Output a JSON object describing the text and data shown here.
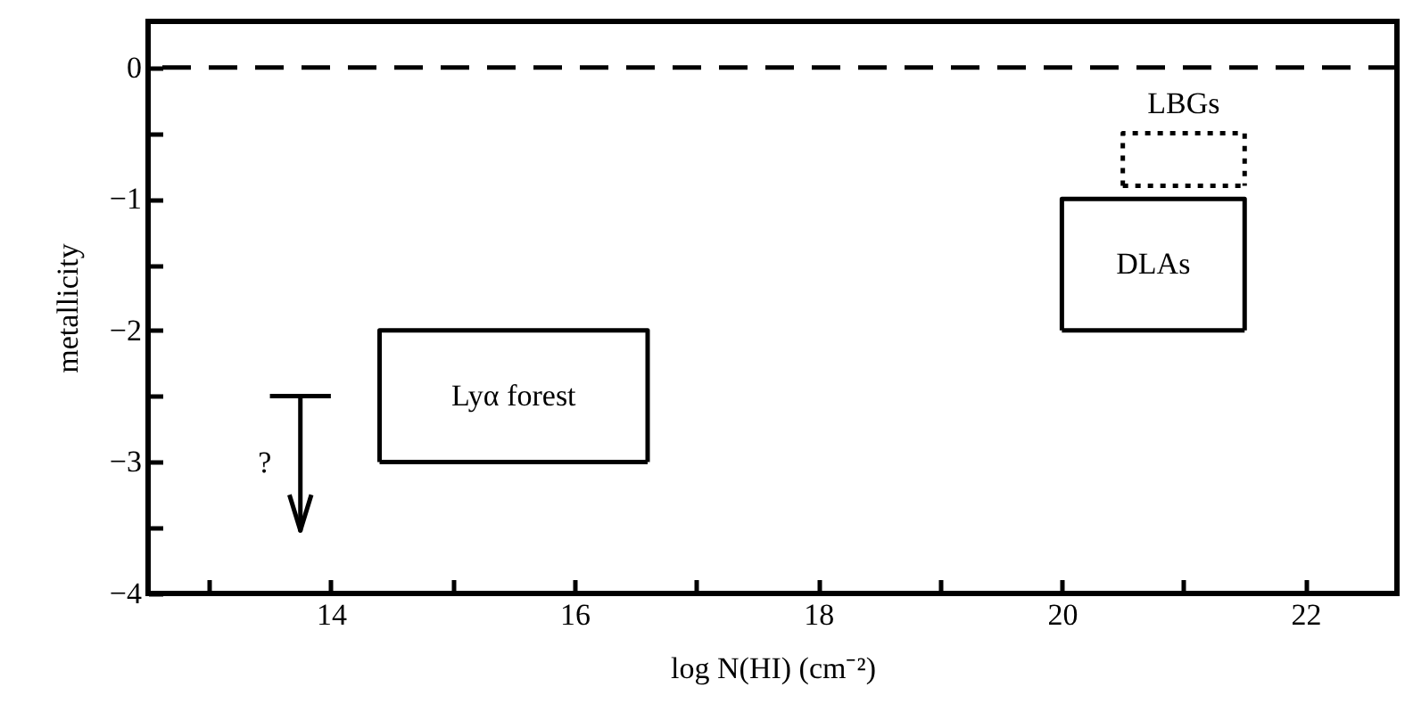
{
  "chart_data": {
    "type": "line",
    "xlabel": "log N(HI) (cm⁻²)",
    "ylabel": "metallicity",
    "xlim": [
      12.5,
      22.75
    ],
    "ylim": [
      -4,
      0.35
    ],
    "xticks": [
      {
        "value": 13,
        "label": null
      },
      14,
      {
        "value": 15,
        "label": null
      },
      16,
      {
        "value": 17,
        "label": null
      },
      18,
      {
        "value": 19,
        "label": null
      },
      20,
      {
        "value": 21,
        "label": null
      },
      22
    ],
    "yticks": [
      -4,
      {
        "value": -3.5,
        "label": null
      },
      -3,
      {
        "value": -2.5,
        "label": null
      },
      -2,
      {
        "value": -1.5,
        "label": null
      },
      -1,
      {
        "value": -0.5,
        "label": null
      },
      0
    ],
    "series": [
      {
        "name": "Lyα  forest",
        "color": "#000000",
        "x": [
          14.4,
          14.4,
          16.6,
          16.6
        ],
        "values": [
          -3,
          -2,
          -2,
          -3
        ]
      },
      {
        "color": "#000000",
        "x": [
          14.4,
          16.6
        ],
        "values": [
          -3,
          -3
        ]
      },
      {
        "name": "DLAs",
        "color": "#000000",
        "x": [
          20,
          20,
          21.5,
          21.5
        ],
        "values": [
          -2,
          -1,
          -1,
          -2
        ]
      },
      {
        "color": "#000000",
        "x": [
          20,
          21.5
        ],
        "values": [
          -2,
          -2
        ]
      },
      {
        "name": "LBGs",
        "color": "#000000",
        "line_style": "dotted",
        "x": [
          20.5,
          20.5,
          21.5,
          21.5
        ],
        "values": [
          -0.9,
          -0.5,
          -0.5,
          -0.9
        ]
      },
      {
        "color": "#000000",
        "line_style": "dotted",
        "x": [
          20.5,
          21.5
        ],
        "values": [
          -0.9,
          -0.9
        ]
      },
      {
        "name": "?",
        "color": "#000000",
        "x": [
          13.5,
          13.75,
          13.75,
          13.75,
          14.0
        ],
        "values": [
          -2.5,
          -2.5,
          -3.52,
          -2.5,
          -2.5
        ]
      },
      {
        "color": "#000000",
        "x": [
          13.66,
          13.75,
          13.84
        ],
        "values": [
          -3.25,
          -3.52,
          -3.25
        ]
      }
    ],
    "ref_lines": [
      {
        "axis": "y",
        "value": 0,
        "line_style": "dashed",
        "color": "#000000"
      }
    ]
  }
}
